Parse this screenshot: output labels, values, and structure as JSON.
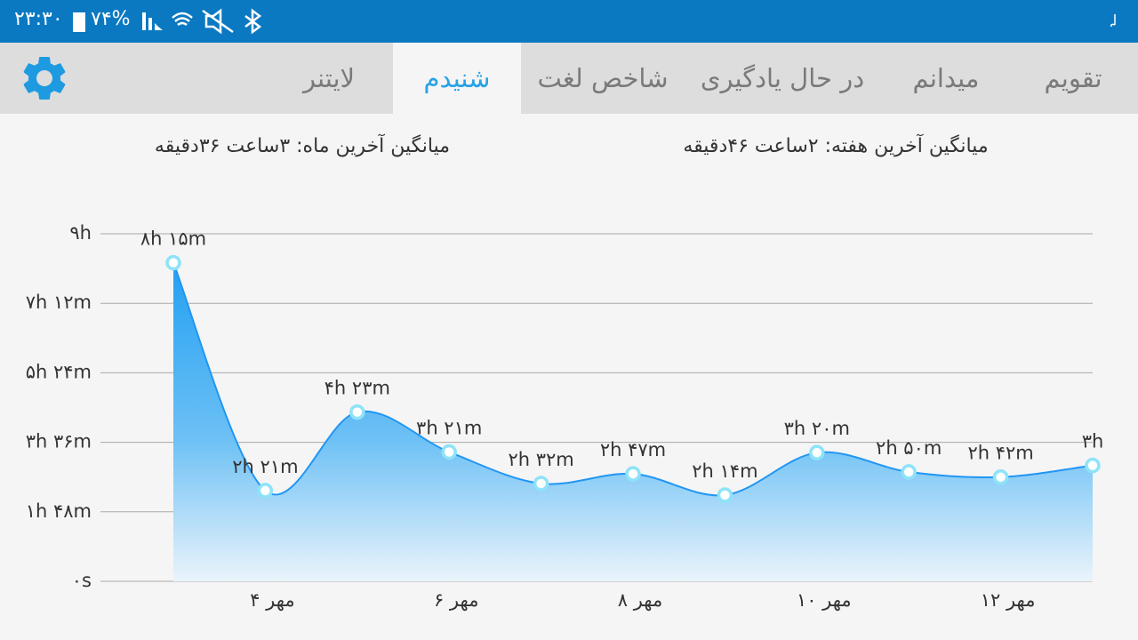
{
  "status_bar": {
    "time": "۲۳:۳۰",
    "battery": "۷۴%"
  },
  "tabs": [
    {
      "label": "تقویم",
      "active": false
    },
    {
      "label": "میدانم",
      "active": false
    },
    {
      "label": "در حال یادگیری",
      "active": false
    },
    {
      "label": "شاخص لغت",
      "active": false
    },
    {
      "label": "شنیدم",
      "active": true
    },
    {
      "label": "لایتنر",
      "active": false
    }
  ],
  "averages": {
    "week": "میانگین آخرین هفته: ۲ساعت  ۴۶دقیقه",
    "month": "میانگین آخرین ماه: ۳ساعت  ۳۶دقیقه"
  },
  "chart": {
    "type": "area",
    "categories": [
      null,
      "۴ مهر",
      null,
      "۶ مهر",
      null,
      "۸ مهر",
      null,
      "۱۰ مهر",
      null,
      "۱۲ مهر",
      null
    ],
    "values": [
      495,
      141,
      263,
      201,
      152,
      167,
      134,
      200,
      170,
      162,
      180
    ],
    "value_labels": [
      "۸h ۱۵m",
      "۲h ۲۱m",
      "۴h ۲۳m",
      "۳h ۲۱m",
      "۲h ۳۲m",
      "۲h ۴۷m",
      "۲h ۱۴m",
      "۳h ۲۰m",
      "۲h ۵۰m",
      "۲h ۴۲m",
      "۳h"
    ],
    "color": "#2196f3",
    "ylim": [
      0,
      540
    ],
    "yticks": [
      {
        "value": 0,
        "label": "۰s"
      },
      {
        "value": 108,
        "label": "۱h ۴۸m"
      },
      {
        "value": 216,
        "label": "۳h ۳۶m"
      },
      {
        "value": 324,
        "label": "۵h ۲۴m"
      },
      {
        "value": 432,
        "label": "۷h ۱۲m"
      },
      {
        "value": 540,
        "label": "۹h"
      }
    ],
    "grid": true
  }
}
